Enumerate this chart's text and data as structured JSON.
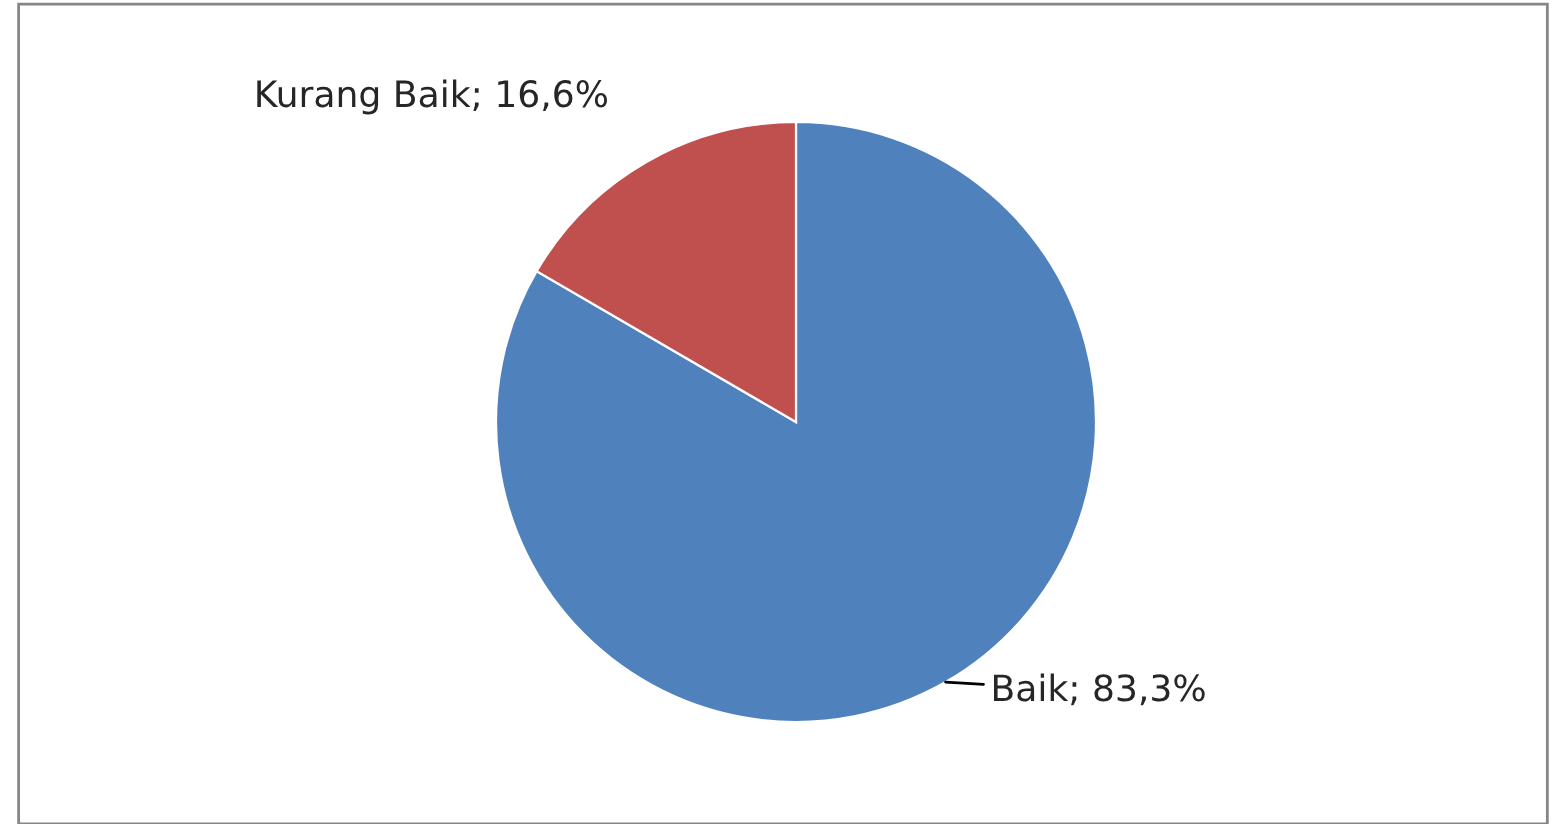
{
  "chart_data": {
    "type": "pie",
    "categories": [
      "Baik",
      "Kurang Baik"
    ],
    "values": [
      83.3,
      16.6
    ],
    "value_labels": [
      "83,3%",
      "16,6%"
    ],
    "colors": [
      "#4f81bd",
      "#c0504d"
    ],
    "legend": false
  }
}
